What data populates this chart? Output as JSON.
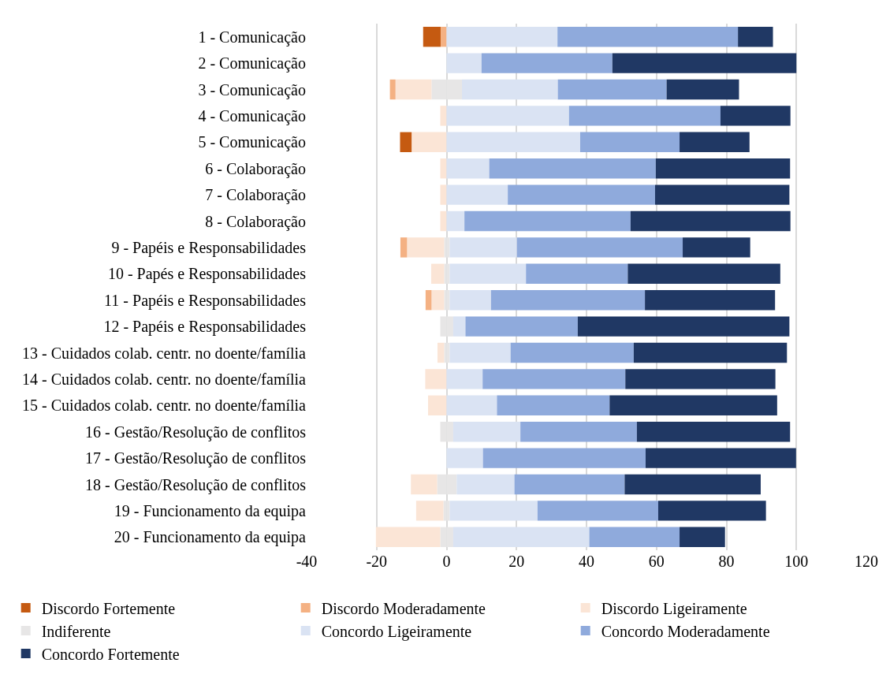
{
  "chart_data": {
    "type": "bar",
    "orientation": "horizontal",
    "stacked": true,
    "categories": [
      "1 - Comunicação",
      "2 - Comunicação",
      "3 - Comunicação",
      "4 - Comunicação",
      "5 - Comunicação",
      "6 - Colaboração",
      "7 - Colaboração",
      "8 - Colaboração",
      "9 - Papéis e Responsabilidades",
      "10 - Papés e Responsabilidades",
      "11 - Papéis e Responsabilidades",
      "12 - Papéis e Responsabilidades",
      "13 - Cuidados colab. centr. no doente/família",
      "14 - Cuidados colab. centr. no doente/família",
      "15 - Cuidados colab. centr. no doente/família",
      "16 - Gestão/Resolução de conflitos",
      "17 - Gestão/Resolução de conflitos",
      "18 - Gestão/Resolução de conflitos",
      "19 - Funcionamento da equipa",
      "20 - Funcionamento da equipa"
    ],
    "series": [
      {
        "color": "#e7e6e6",
        "values": [
          0,
          0,
          -4.3,
          0,
          0,
          0,
          0,
          0,
          -0.7,
          -0.7,
          -0.7,
          -1.8,
          -0.7,
          0,
          0,
          -1.8,
          0,
          -2.7,
          -0.9,
          -1.8
        ]
      },
      {
        "name": "Discordo Ligeiramente",
        "color": "#fbe5d6",
        "values": [
          0,
          0,
          -10.3,
          -1.8,
          -10.0,
          -1.8,
          -1.8,
          -1.8,
          -10.6,
          -3.7,
          -3.6,
          0,
          -1.9,
          -6.1,
          -5.3,
          0,
          0,
          -7.5,
          -7.8,
          -18.4
        ]
      },
      {
        "name": "Discordo Moderadamente",
        "color": "#f4b183",
        "values": [
          -1.7,
          0,
          -1.6,
          0,
          0,
          0,
          0,
          0,
          -1.9,
          0,
          -1.7,
          0,
          0,
          0,
          0,
          0,
          0,
          0,
          0,
          0
        ]
      },
      {
        "name": "Discordo Fortemente",
        "color": "#c55a11",
        "values": [
          -5.0,
          0,
          0,
          0,
          -3.3,
          0,
          0,
          0,
          0,
          0,
          0,
          0,
          0,
          0,
          0,
          0,
          0,
          0,
          0,
          0
        ]
      },
      {
        "name": "Indiferente",
        "color": "#e7e6e6",
        "values": [
          0,
          0,
          4.4,
          0,
          0,
          0,
          0,
          0,
          0.9,
          0.9,
          0.9,
          1.9,
          0.9,
          0,
          0,
          1.9,
          0,
          2.9,
          0.9,
          1.9
        ]
      },
      {
        "name": "Concordo Ligeiramente",
        "color": "#dae3f3",
        "values": [
          31.7,
          10.0,
          27.4,
          35.0,
          38.2,
          12.2,
          17.5,
          5.1,
          19.2,
          21.8,
          11.8,
          3.5,
          17.4,
          10.3,
          14.4,
          19.2,
          10.4,
          16.5,
          25.1,
          38.9
        ]
      },
      {
        "name": "Concordo Moderadamente",
        "color": "#8faadc",
        "values": [
          51.6,
          37.4,
          31.1,
          43.3,
          28.4,
          47.6,
          42.1,
          47.5,
          47.4,
          29.1,
          44.0,
          32.1,
          35.2,
          40.8,
          32.2,
          33.3,
          46.5,
          31.5,
          34.5,
          25.8
        ]
      },
      {
        "name": "Concordo Fortemente",
        "color": "#203864",
        "values": [
          10.0,
          52.6,
          20.7,
          20.0,
          20.0,
          38.4,
          38.4,
          45.7,
          19.3,
          43.6,
          37.2,
          60.5,
          43.8,
          42.9,
          47.9,
          43.8,
          43.0,
          38.9,
          30.8,
          13.0
        ]
      }
    ],
    "xlim": [
      -40,
      120
    ],
    "xticks": [
      -40,
      -20,
      0,
      20,
      40,
      60,
      80,
      100,
      120
    ],
    "grid": "x",
    "legend": "bottom"
  }
}
